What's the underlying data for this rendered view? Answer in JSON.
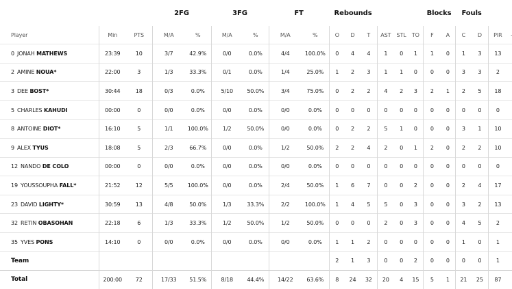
{
  "groups": {
    "fg2": "2FG",
    "fg3": "3FG",
    "ft": "FT",
    "rebounds": "Rebounds",
    "blocks": "Blocks",
    "fouls": "Fouls"
  },
  "columns": {
    "player": "Player",
    "min": "Min",
    "pts": "PTS",
    "fg2_ma": "M/A",
    "fg2_pct": "%",
    "fg3_ma": "M/A",
    "fg3_pct": "%",
    "ft_ma": "M/A",
    "ft_pct": "%",
    "reb_o": "O",
    "reb_d": "D",
    "reb_t": "T",
    "ast": "AST",
    "stl": "STL",
    "to": "TO",
    "blk_f": "F",
    "blk_a": "A",
    "foul_c": "C",
    "foul_d": "D",
    "pir": "PIR",
    "pm": "+/-"
  },
  "players": [
    {
      "num": "0",
      "first": "JONAH",
      "last": "MATHEWS",
      "min": "23:39",
      "pts": "10",
      "fg2": "3/7",
      "fg2p": "42.9%",
      "fg3": "0/0",
      "fg3p": "0.0%",
      "ft": "4/4",
      "ftp": "100.0%",
      "o": "0",
      "d": "4",
      "t": "4",
      "ast": "1",
      "stl": "0",
      "to": "1",
      "bf": "1",
      "ba": "0",
      "fc": "1",
      "fd": "3",
      "pir": "13",
      "pm": ""
    },
    {
      "num": "2",
      "first": "AMINE",
      "last": "NOUA*",
      "min": "22:00",
      "pts": "3",
      "fg2": "1/3",
      "fg2p": "33.3%",
      "fg3": "0/1",
      "fg3p": "0.0%",
      "ft": "1/4",
      "ftp": "25.0%",
      "o": "1",
      "d": "2",
      "t": "3",
      "ast": "1",
      "stl": "1",
      "to": "0",
      "bf": "0",
      "ba": "0",
      "fc": "3",
      "fd": "3",
      "pir": "2",
      "pm": ""
    },
    {
      "num": "3",
      "first": "DEE",
      "last": "BOST*",
      "min": "30:44",
      "pts": "18",
      "fg2": "0/3",
      "fg2p": "0.0%",
      "fg3": "5/10",
      "fg3p": "50.0%",
      "ft": "3/4",
      "ftp": "75.0%",
      "o": "0",
      "d": "2",
      "t": "2",
      "ast": "4",
      "stl": "2",
      "to": "3",
      "bf": "2",
      "ba": "1",
      "fc": "2",
      "fd": "5",
      "pir": "18",
      "pm": ""
    },
    {
      "num": "5",
      "first": "CHARLES",
      "last": "KAHUDI",
      "min": "00:00",
      "pts": "0",
      "fg2": "0/0",
      "fg2p": "0.0%",
      "fg3": "0/0",
      "fg3p": "0.0%",
      "ft": "0/0",
      "ftp": "0.0%",
      "o": "0",
      "d": "0",
      "t": "0",
      "ast": "0",
      "stl": "0",
      "to": "0",
      "bf": "0",
      "ba": "0",
      "fc": "0",
      "fd": "0",
      "pir": "0",
      "pm": ""
    },
    {
      "num": "8",
      "first": "ANTOINE",
      "last": "DIOT*",
      "min": "16:10",
      "pts": "5",
      "fg2": "1/1",
      "fg2p": "100.0%",
      "fg3": "1/2",
      "fg3p": "50.0%",
      "ft": "0/0",
      "ftp": "0.0%",
      "o": "0",
      "d": "2",
      "t": "2",
      "ast": "5",
      "stl": "1",
      "to": "0",
      "bf": "0",
      "ba": "0",
      "fc": "3",
      "fd": "1",
      "pir": "10",
      "pm": ""
    },
    {
      "num": "9",
      "first": "ALEX",
      "last": "TYUS",
      "min": "18:08",
      "pts": "5",
      "fg2": "2/3",
      "fg2p": "66.7%",
      "fg3": "0/0",
      "fg3p": "0.0%",
      "ft": "1/2",
      "ftp": "50.0%",
      "o": "2",
      "d": "2",
      "t": "4",
      "ast": "2",
      "stl": "0",
      "to": "1",
      "bf": "2",
      "ba": "0",
      "fc": "2",
      "fd": "2",
      "pir": "10",
      "pm": ""
    },
    {
      "num": "12",
      "first": "NANDO",
      "last": "DE COLO",
      "min": "00:00",
      "pts": "0",
      "fg2": "0/0",
      "fg2p": "0.0%",
      "fg3": "0/0",
      "fg3p": "0.0%",
      "ft": "0/0",
      "ftp": "0.0%",
      "o": "0",
      "d": "0",
      "t": "0",
      "ast": "0",
      "stl": "0",
      "to": "0",
      "bf": "0",
      "ba": "0",
      "fc": "0",
      "fd": "0",
      "pir": "0",
      "pm": ""
    },
    {
      "num": "19",
      "first": "YOUSSOUPHA",
      "last": "FALL*",
      "min": "21:52",
      "pts": "12",
      "fg2": "5/5",
      "fg2p": "100.0%",
      "fg3": "0/0",
      "fg3p": "0.0%",
      "ft": "2/4",
      "ftp": "50.0%",
      "o": "1",
      "d": "6",
      "t": "7",
      "ast": "0",
      "stl": "0",
      "to": "2",
      "bf": "0",
      "ba": "0",
      "fc": "2",
      "fd": "4",
      "pir": "17",
      "pm": ""
    },
    {
      "num": "23",
      "first": "DAVID",
      "last": "LIGHTY*",
      "min": "30:59",
      "pts": "13",
      "fg2": "4/8",
      "fg2p": "50.0%",
      "fg3": "1/3",
      "fg3p": "33.3%",
      "ft": "2/2",
      "ftp": "100.0%",
      "o": "1",
      "d": "4",
      "t": "5",
      "ast": "5",
      "stl": "0",
      "to": "3",
      "bf": "0",
      "ba": "0",
      "fc": "3",
      "fd": "2",
      "pir": "13",
      "pm": ""
    },
    {
      "num": "32",
      "first": "RETIN",
      "last": "OBASOHAN",
      "min": "22:18",
      "pts": "6",
      "fg2": "1/3",
      "fg2p": "33.3%",
      "fg3": "1/2",
      "fg3p": "50.0%",
      "ft": "1/2",
      "ftp": "50.0%",
      "o": "0",
      "d": "0",
      "t": "0",
      "ast": "2",
      "stl": "0",
      "to": "3",
      "bf": "0",
      "ba": "0",
      "fc": "4",
      "fd": "5",
      "pir": "2",
      "pm": ""
    },
    {
      "num": "35",
      "first": "YVES",
      "last": "PONS",
      "min": "14:10",
      "pts": "0",
      "fg2": "0/0",
      "fg2p": "0.0%",
      "fg3": "0/0",
      "fg3p": "0.0%",
      "ft": "0/0",
      "ftp": "0.0%",
      "o": "1",
      "d": "1",
      "t": "2",
      "ast": "0",
      "stl": "0",
      "to": "0",
      "bf": "0",
      "ba": "0",
      "fc": "1",
      "fd": "0",
      "pir": "1",
      "pm": ""
    }
  ],
  "team": {
    "label": "Team",
    "o": "2",
    "d": "1",
    "t": "3",
    "ast": "0",
    "stl": "0",
    "to": "2",
    "bf": "0",
    "ba": "0",
    "fc": "0",
    "fd": "0",
    "pir": "1"
  },
  "total": {
    "label": "Total",
    "min": "200:00",
    "pts": "72",
    "fg2": "17/33",
    "fg2p": "51.5%",
    "fg3": "8/18",
    "fg3p": "44.4%",
    "ft": "14/22",
    "ftp": "63.6%",
    "o": "8",
    "d": "24",
    "t": "32",
    "ast": "20",
    "stl": "4",
    "to": "15",
    "bf": "5",
    "ba": "1",
    "fc": "21",
    "fd": "25",
    "pir": "87",
    "pm": ""
  }
}
